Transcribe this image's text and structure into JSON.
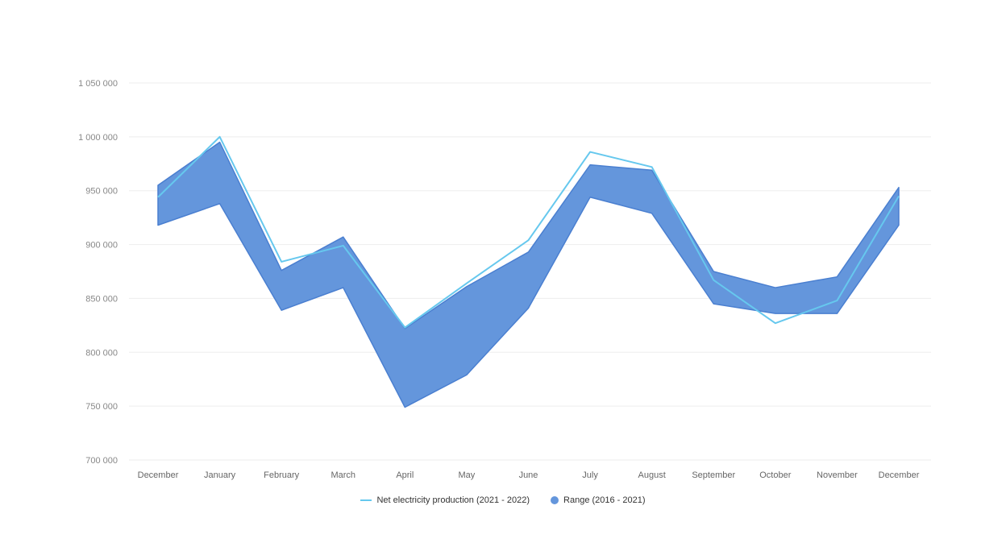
{
  "colors": {
    "range_fill": "#6496DC",
    "range_stroke": "#4A7FD0",
    "line": "#66C8EE",
    "grid": "#EDEDED",
    "tick_text": "#888888"
  },
  "legend": {
    "line_label": "Net electricity production (2021 - 2022)",
    "range_label": "Range (2016 - 2021)"
  },
  "chart_data": {
    "type": "area",
    "categories": [
      "December",
      "January",
      "February",
      "March",
      "April",
      "May",
      "June",
      "July",
      "August",
      "September",
      "October",
      "November",
      "December"
    ],
    "y_ticks": [
      "700 000",
      "750 000",
      "800 000",
      "850 000",
      "900 000",
      "950 000",
      "1 000 000",
      "1 050 000"
    ],
    "ylim": [
      700000,
      1050000
    ],
    "grid": true,
    "legend_position": "bottom",
    "series": [
      {
        "name": "Range (2016 - 2021)",
        "type": "range",
        "low": [
          918000,
          938000,
          839000,
          860000,
          749000,
          779000,
          841000,
          944000,
          929000,
          845000,
          836000,
          836000,
          918000
        ],
        "high": [
          955000,
          995000,
          876000,
          907000,
          822000,
          861000,
          893000,
          974000,
          969000,
          875000,
          860000,
          870000,
          953000
        ]
      },
      {
        "name": "Net electricity production (2021 - 2022)",
        "type": "line",
        "values": [
          944000,
          1000000,
          884000,
          899000,
          823000,
          864000,
          904000,
          986000,
          972000,
          867000,
          827000,
          848000,
          945000
        ]
      }
    ]
  }
}
